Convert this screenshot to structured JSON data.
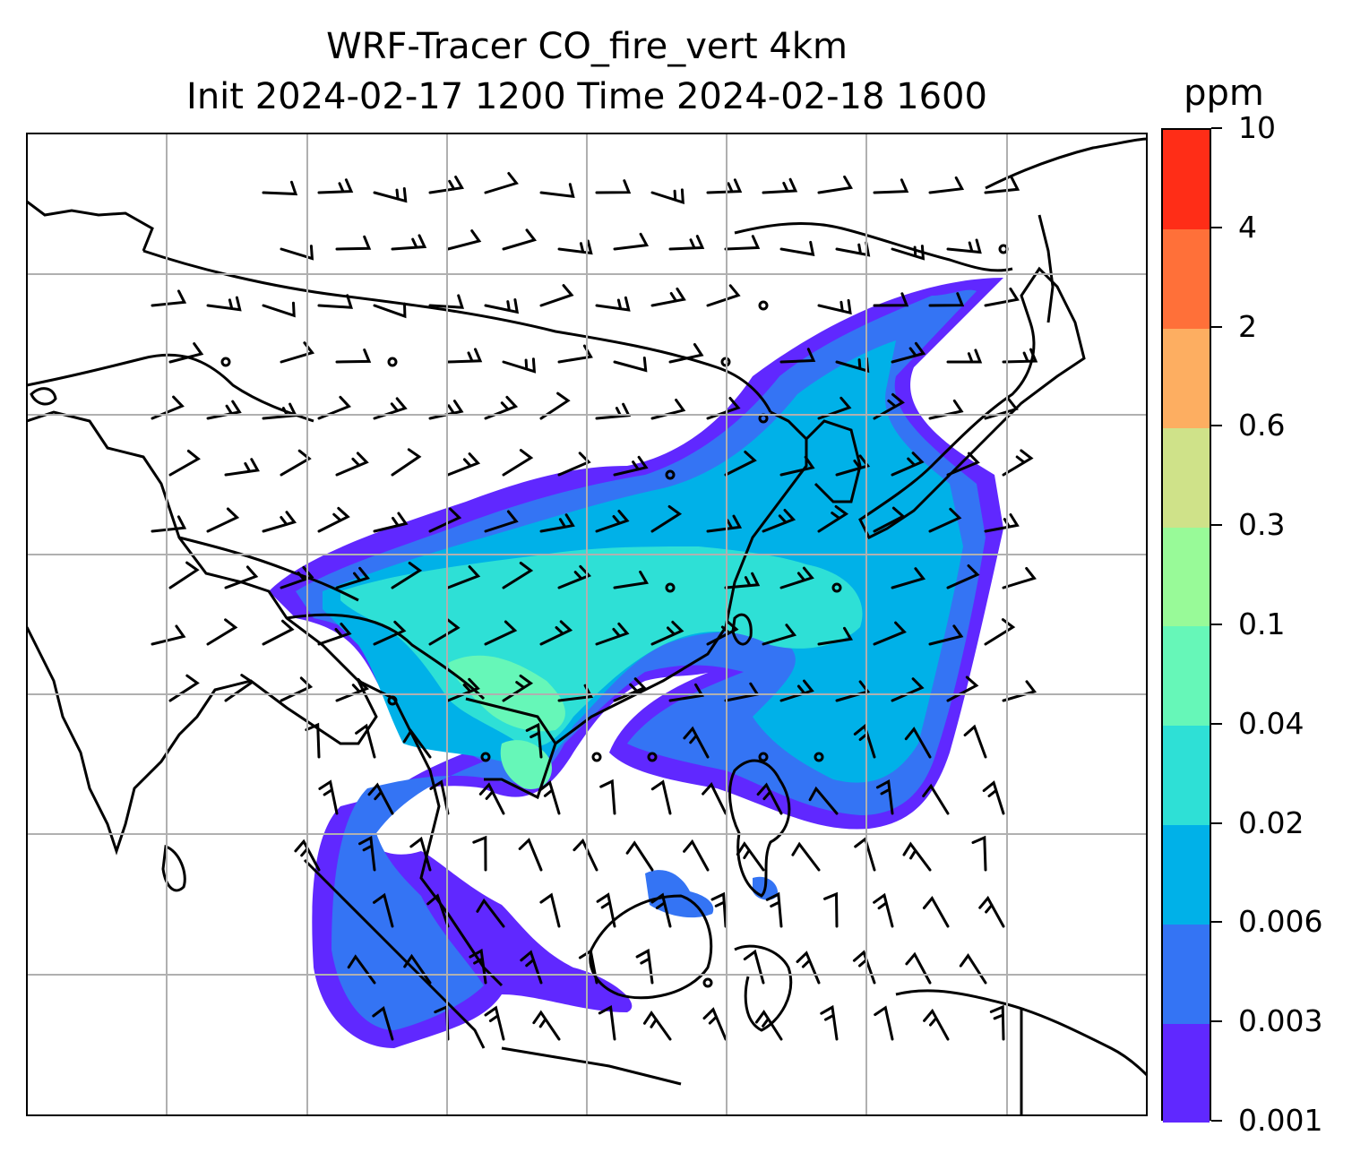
{
  "title": {
    "line1": "WRF-Tracer CO_fire_vert 4km",
    "line2": "Init 2024-02-17 1200 Time 2024-02-18 1600"
  },
  "colorbar": {
    "unit": "ppm",
    "levels": [
      "0.001",
      "0.003",
      "0.006",
      "0.02",
      "0.04",
      "0.1",
      "0.3",
      "0.6",
      "2",
      "4",
      "10"
    ],
    "colors": [
      "#6028ff",
      "#3474f4",
      "#00b1e8",
      "#2ee0d6",
      "#66f7b8",
      "#98fa98",
      "#cfe289",
      "#fdae61",
      "#ff7039",
      "#ff2d17"
    ]
  },
  "map": {
    "background": "#ffffff",
    "coastline_color": "#000000",
    "gridline_color": "#b0b0b0"
  }
}
